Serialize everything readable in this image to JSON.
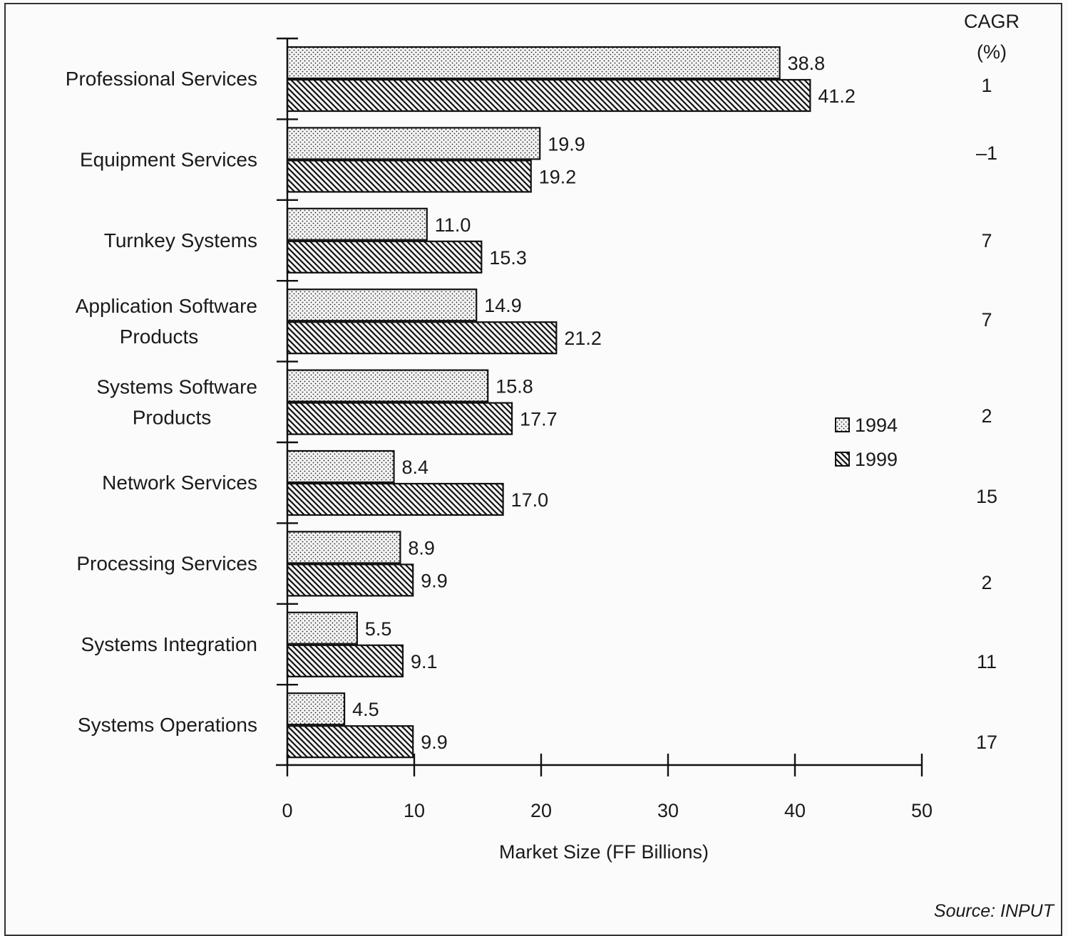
{
  "chart_data": {
    "type": "bar",
    "orientation": "horizontal",
    "categories": [
      "Professional Services",
      "Equipment Services",
      "Turnkey Systems",
      "Application Software Products",
      "Systems Software Products",
      "Network Services",
      "Processing Services",
      "Systems Integration",
      "Systems Operations"
    ],
    "category_lines": [
      [
        "Professional Services"
      ],
      [
        "Equipment Services"
      ],
      [
        "Turnkey Systems"
      ],
      [
        "Application Software",
        "Products"
      ],
      [
        "Systems Software",
        "Products"
      ],
      [
        "Network Services"
      ],
      [
        "Processing Services"
      ],
      [
        "Systems Integration"
      ],
      [
        "Systems Operations"
      ]
    ],
    "series": [
      {
        "name": "1994",
        "pattern": "dots",
        "values": [
          38.8,
          19.9,
          11.0,
          14.9,
          15.8,
          8.4,
          8.9,
          5.5,
          4.5
        ],
        "labels": [
          "38.8",
          "19.9",
          "11.0",
          "14.9",
          "15.8",
          "8.4",
          "8.9",
          "5.5",
          "4.5"
        ]
      },
      {
        "name": "1999",
        "pattern": "hatch",
        "values": [
          41.2,
          19.2,
          15.3,
          21.2,
          17.7,
          17.0,
          9.9,
          9.1,
          9.9
        ],
        "labels": [
          "41.2",
          "19.2",
          "15.3",
          "21.2",
          "17.7",
          "17.0",
          "9.9",
          "9.1",
          "9.9"
        ]
      }
    ],
    "cagr": {
      "header": [
        "CAGR",
        "(%)"
      ],
      "values": [
        "1",
        "–1",
        "7",
        "7",
        "2",
        "15",
        "2",
        "11",
        "17"
      ]
    },
    "xlabel": "Market Size (FF Billions)",
    "xlim": [
      0,
      50
    ],
    "xticks": [
      0,
      10,
      20,
      30,
      40,
      50
    ],
    "legend_position": "right",
    "grid": false,
    "source": "Source: INPUT"
  }
}
